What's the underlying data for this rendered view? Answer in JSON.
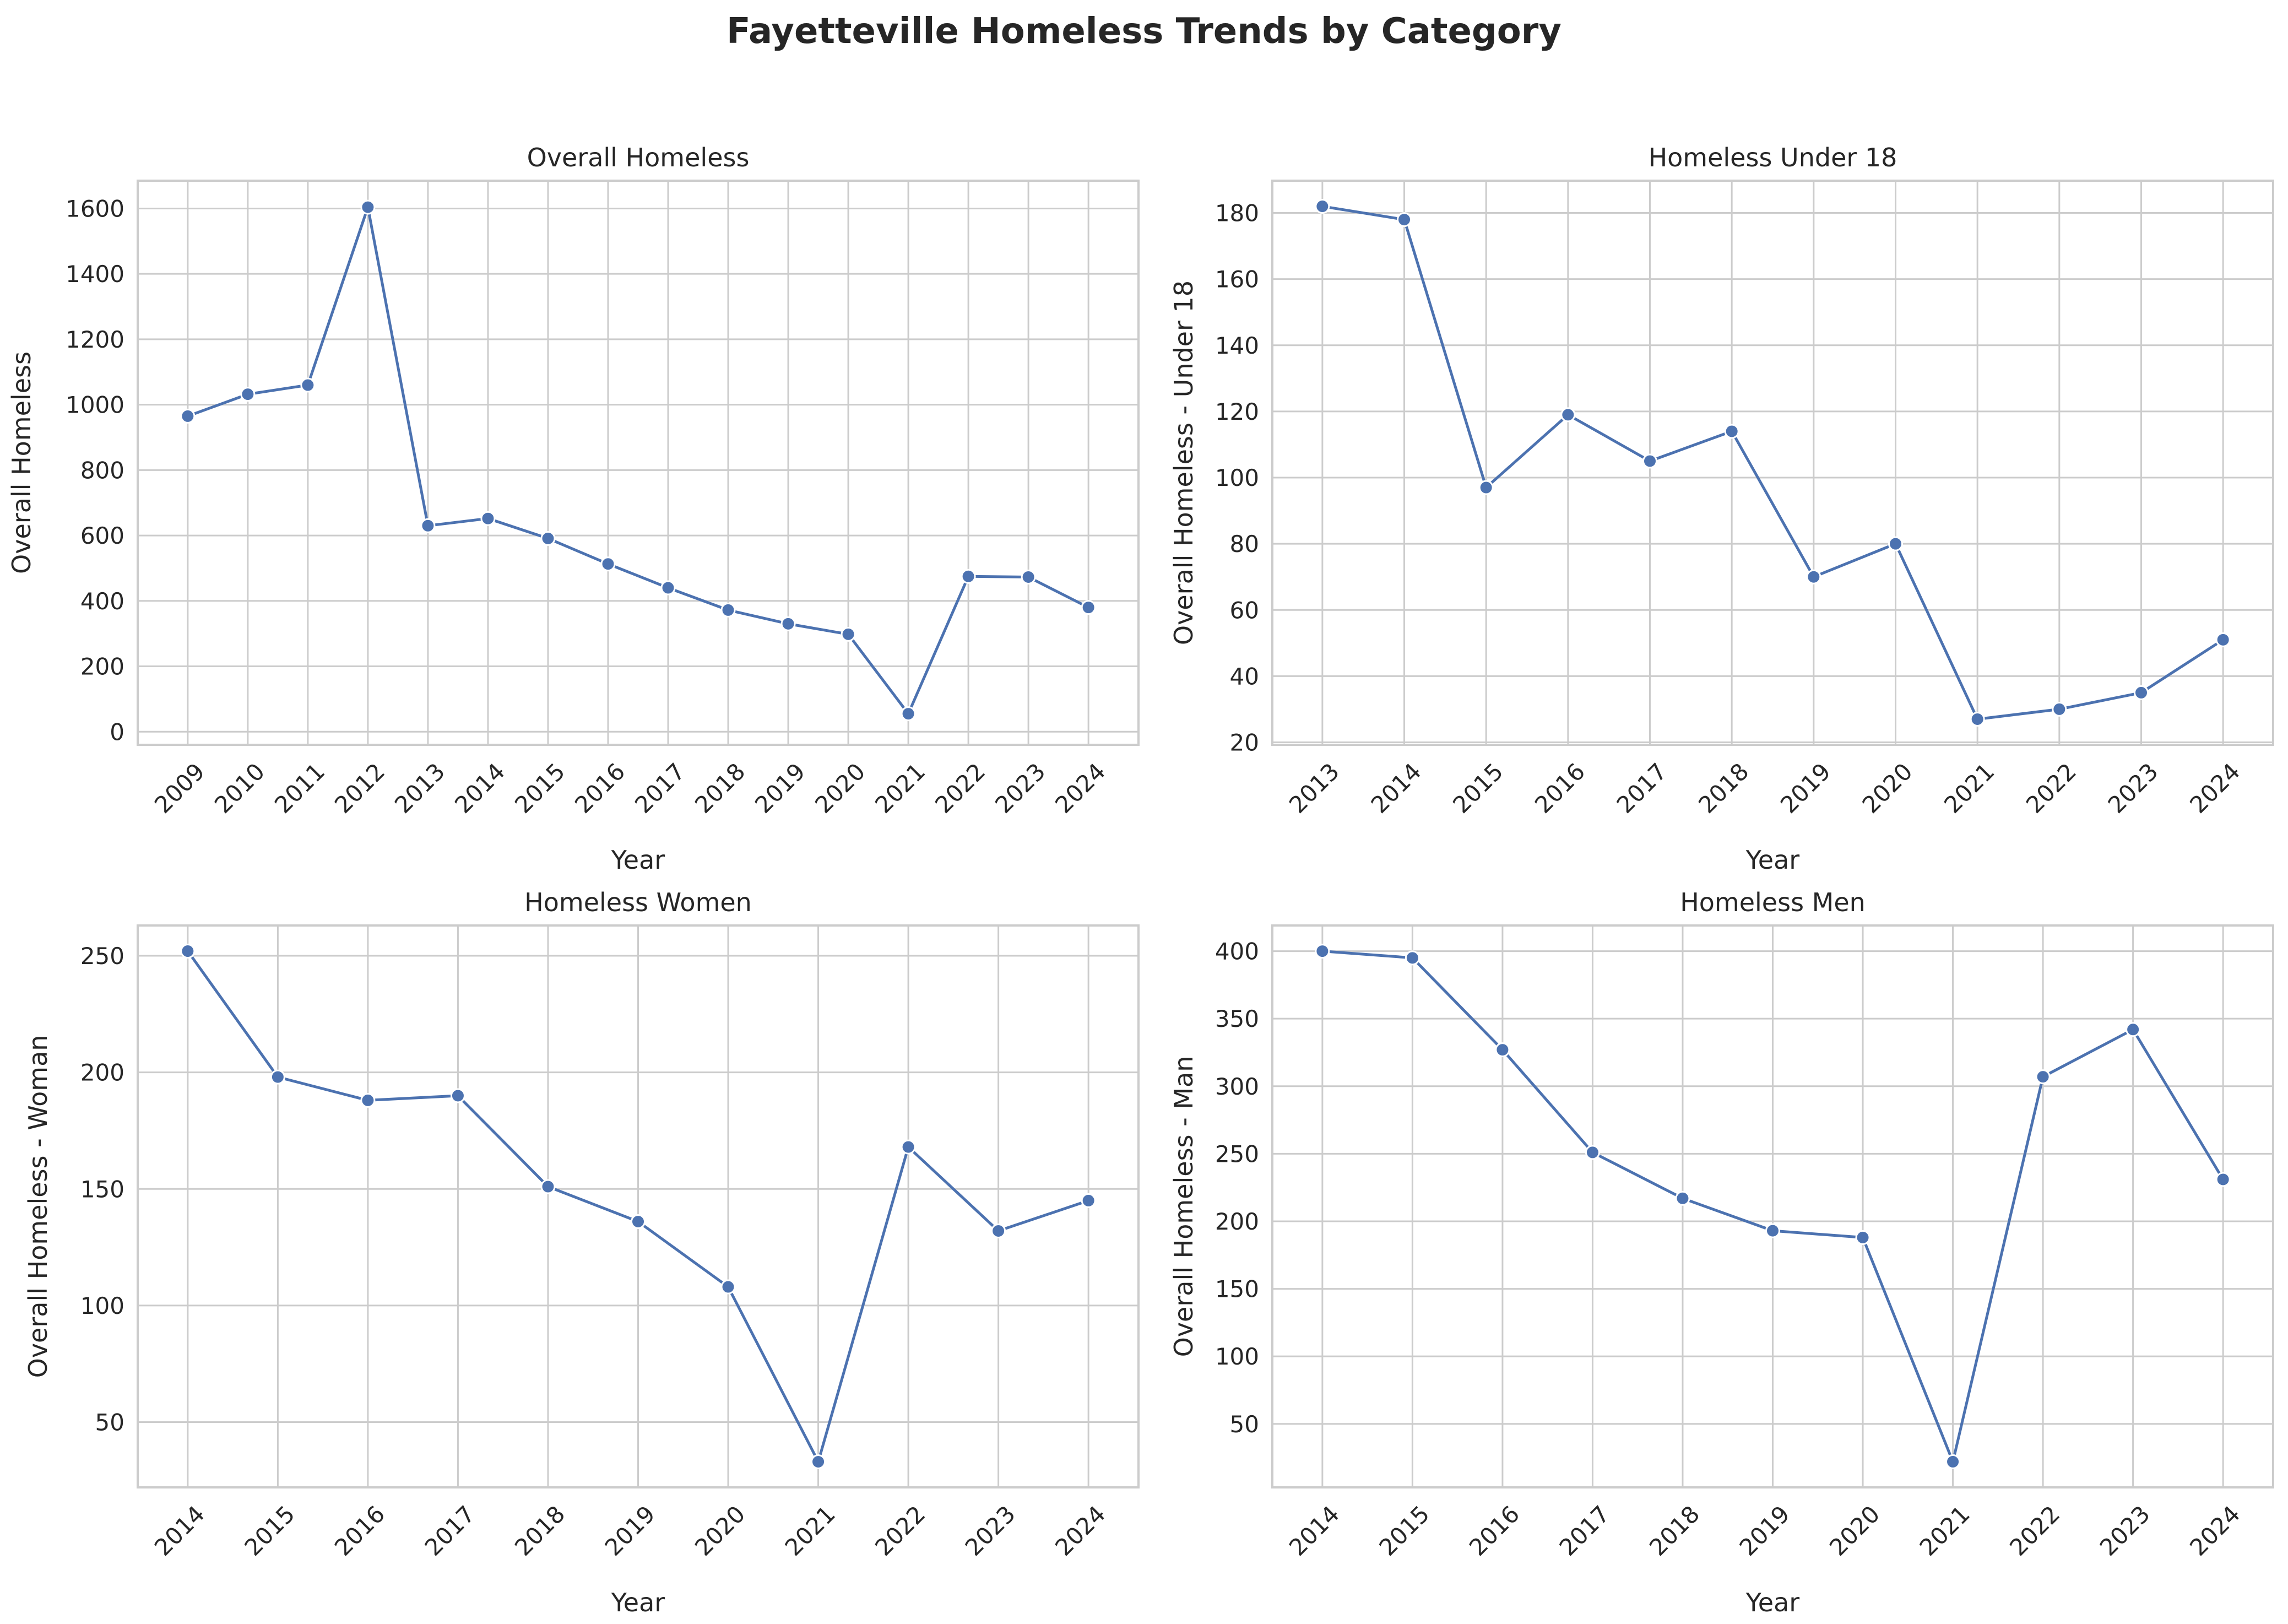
{
  "suptitle": "Fayetteville Homeless Trends by Category",
  "colors": {
    "line": "#4c72b0",
    "grid": "#cccccc",
    "frame": "#cccccc",
    "text": "#262626"
  },
  "chart_data": [
    {
      "type": "line",
      "title": "Overall Homeless",
      "xlabel": "Year",
      "ylabel": "Overall Homeless",
      "categories": [
        "2009",
        "2010",
        "2011",
        "2012",
        "2013",
        "2014",
        "2015",
        "2016",
        "2017",
        "2018",
        "2019",
        "2020",
        "2021",
        "2022",
        "2023",
        "2024"
      ],
      "values": [
        965,
        1032,
        1060,
        1604,
        630,
        652,
        591,
        513,
        440,
        372,
        330,
        298,
        55,
        475,
        473,
        380
      ],
      "ylim": [
        -40,
        1685
      ],
      "yticks": [
        0,
        200,
        400,
        600,
        800,
        1000,
        1200,
        1400,
        1600
      ],
      "grid": true
    },
    {
      "type": "line",
      "title": "Homeless Under 18",
      "xlabel": "Year",
      "ylabel": "Overall Homeless - Under 18",
      "categories": [
        "2013",
        "2014",
        "2015",
        "2016",
        "2017",
        "2018",
        "2019",
        "2020",
        "2021",
        "2022",
        "2023",
        "2024"
      ],
      "values": [
        182,
        178,
        97,
        119,
        105,
        114,
        70,
        80,
        27,
        30,
        35,
        51
      ],
      "ylim": [
        19.25,
        189.75
      ],
      "yticks": [
        20,
        40,
        60,
        80,
        100,
        120,
        140,
        160,
        180
      ],
      "grid": true
    },
    {
      "type": "line",
      "title": "Homeless Women",
      "xlabel": "Year",
      "ylabel": "Overall Homeless - Woman",
      "categories": [
        "2014",
        "2015",
        "2016",
        "2017",
        "2018",
        "2019",
        "2020",
        "2021",
        "2022",
        "2023",
        "2024"
      ],
      "values": [
        252,
        198,
        188,
        190,
        151,
        136,
        108,
        33,
        168,
        132,
        145
      ],
      "ylim": [
        22,
        263
      ],
      "yticks": [
        50,
        100,
        150,
        200,
        250
      ],
      "grid": true
    },
    {
      "type": "line",
      "title": "Homeless Men",
      "xlabel": "Year",
      "ylabel": "Overall Homeless - Man",
      "categories": [
        "2014",
        "2015",
        "2016",
        "2017",
        "2018",
        "2019",
        "2020",
        "2021",
        "2022",
        "2023",
        "2024"
      ],
      "values": [
        400,
        395,
        327,
        251,
        217,
        193,
        188,
        22,
        307,
        342,
        231
      ],
      "ylim": [
        3,
        419
      ],
      "yticks": [
        50,
        100,
        150,
        200,
        250,
        300,
        350,
        400
      ],
      "grid": true
    }
  ]
}
